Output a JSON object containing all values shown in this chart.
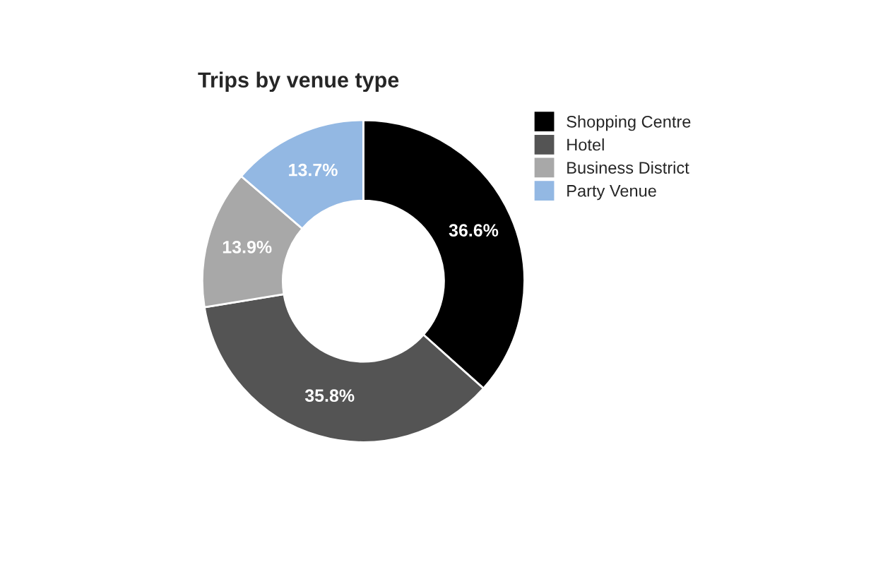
{
  "chart_data": {
    "type": "donut",
    "title": "Trips by venue type",
    "categories": [
      "Shopping Centre",
      "Hotel",
      "Business District",
      "Party Venue"
    ],
    "values": [
      36.6,
      35.8,
      13.9,
      13.7
    ],
    "colors": [
      "#000000",
      "#545454",
      "#a8a8a8",
      "#93b8e3"
    ],
    "value_labels": [
      "36.6%",
      "35.8%",
      "13.9%",
      "13.7%"
    ],
    "legend": "right"
  }
}
